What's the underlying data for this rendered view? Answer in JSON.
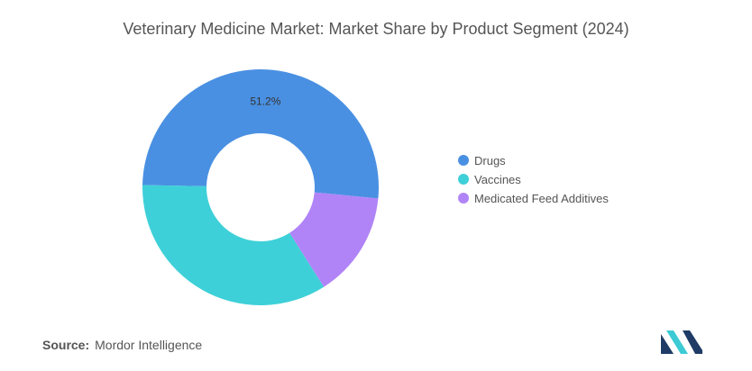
{
  "title": "Veterinary Medicine Market: Market Share by Product Segment (2024)",
  "source": {
    "label": "Source:",
    "name": "Mordor Intelligence"
  },
  "logo": {
    "icon": "mordor-intelligence-logo",
    "colors": [
      "#1f3b66",
      "#3ccbd4"
    ]
  },
  "chart_data": {
    "type": "pie",
    "donut": true,
    "title": "Veterinary Medicine Market: Market Share by Product Segment (2024)",
    "categories": [
      "Drugs",
      "Vaccines",
      "Medicated Feed Additives"
    ],
    "values": [
      51.2,
      34.3,
      14.5
    ],
    "data_labels": [
      "51.2%",
      "",
      ""
    ],
    "colors": [
      "#4a90e2",
      "#3ed0d8",
      "#b084f7"
    ],
    "legend_position": "right"
  }
}
